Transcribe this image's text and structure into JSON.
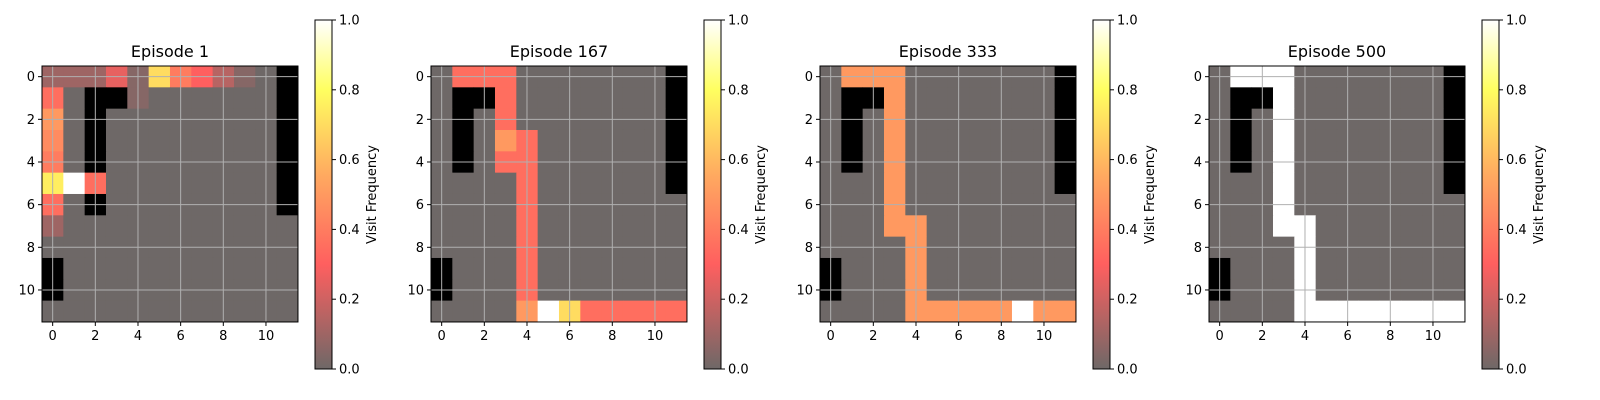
{
  "chart_data": [
    {
      "type": "heatmap",
      "title": "Episode 1",
      "xticks": [
        "0",
        "2",
        "4",
        "6",
        "8",
        "10"
      ],
      "yticks": [
        "0",
        "2",
        "4",
        "6",
        "8",
        "10"
      ],
      "colorbar": {
        "label": "Visit Frequency",
        "ticks": [
          "0.0",
          "0.2",
          "0.4",
          "0.6",
          "0.8",
          "1.0"
        ],
        "range": [
          0,
          1
        ]
      },
      "grid": true,
      "walls": [
        "000000000001",
        "001100000001",
        "001000000001",
        "001000000001",
        "001000000001",
        "000000000001",
        "001000000001",
        "000000000000",
        "000000000000",
        "100000000000",
        "100000000000",
        "000000000000"
      ],
      "values": [
        [
          0.1,
          0.1,
          0.1,
          0.25,
          0.05,
          0.7,
          0.4,
          0.3,
          0.15,
          0.05,
          0.0,
          0.0
        ],
        [
          0.35,
          0.0,
          0.0,
          0.0,
          0.05,
          0.0,
          0.0,
          0.0,
          0.0,
          0.0,
          0.0,
          0.0
        ],
        [
          0.5,
          0.0,
          0.0,
          0.0,
          0.0,
          0.0,
          0.0,
          0.0,
          0.0,
          0.0,
          0.0,
          0.0
        ],
        [
          0.45,
          0.0,
          0.0,
          0.0,
          0.0,
          0.0,
          0.0,
          0.0,
          0.0,
          0.0,
          0.0,
          0.0
        ],
        [
          0.4,
          0.0,
          0.15,
          0.0,
          0.0,
          0.0,
          0.0,
          0.0,
          0.0,
          0.0,
          0.0,
          0.0
        ],
        [
          0.75,
          1.0,
          0.35,
          0.0,
          0.0,
          0.0,
          0.0,
          0.0,
          0.0,
          0.0,
          0.0,
          0.0
        ],
        [
          0.35,
          0.0,
          0.0,
          0.0,
          0.0,
          0.0,
          0.0,
          0.0,
          0.0,
          0.0,
          0.0,
          0.0
        ],
        [
          0.1,
          0.0,
          0.0,
          0.0,
          0.0,
          0.0,
          0.0,
          0.0,
          0.0,
          0.0,
          0.0,
          0.0
        ],
        [
          0.0,
          0.0,
          0.0,
          0.0,
          0.0,
          0.0,
          0.0,
          0.0,
          0.0,
          0.0,
          0.0,
          0.0
        ],
        [
          0.0,
          0.0,
          0.0,
          0.0,
          0.0,
          0.0,
          0.0,
          0.0,
          0.0,
          0.0,
          0.0,
          0.0
        ],
        [
          0.0,
          0.0,
          0.0,
          0.0,
          0.0,
          0.0,
          0.0,
          0.0,
          0.0,
          0.0,
          0.0,
          0.0
        ],
        [
          0.0,
          0.0,
          0.0,
          0.0,
          0.0,
          0.0,
          0.0,
          0.0,
          0.0,
          0.0,
          0.0,
          0.0
        ]
      ]
    },
    {
      "type": "heatmap",
      "title": "Episode 167",
      "xticks": [
        "0",
        "2",
        "4",
        "6",
        "8",
        "10"
      ],
      "yticks": [
        "0",
        "2",
        "4",
        "6",
        "8",
        "10"
      ],
      "colorbar": {
        "label": "Visit Frequency",
        "ticks": [
          "0.0",
          "0.2",
          "0.4",
          "0.6",
          "0.8",
          "1.0"
        ],
        "range": [
          0,
          1
        ]
      },
      "grid": true,
      "walls": [
        "000000000001",
        "011000000001",
        "010000000001",
        "010000000001",
        "010000000001",
        "000000000001",
        "000000000000",
        "000000000000",
        "000000000000",
        "100000000000",
        "100000000000",
        "000000000000"
      ],
      "values": [
        [
          0.0,
          0.35,
          0.35,
          0.35,
          0.0,
          0.0,
          0.0,
          0.0,
          0.0,
          0.0,
          0.0,
          0.0
        ],
        [
          0.0,
          0.0,
          0.0,
          0.35,
          0.0,
          0.0,
          0.0,
          0.0,
          0.0,
          0.0,
          0.0,
          0.0
        ],
        [
          0.0,
          0.0,
          0.0,
          0.35,
          0.0,
          0.0,
          0.0,
          0.0,
          0.0,
          0.0,
          0.0,
          0.0
        ],
        [
          0.0,
          0.0,
          0.0,
          0.5,
          0.35,
          0.0,
          0.0,
          0.0,
          0.0,
          0.0,
          0.0,
          0.0
        ],
        [
          0.0,
          0.0,
          0.0,
          0.35,
          0.35,
          0.0,
          0.0,
          0.0,
          0.0,
          0.0,
          0.0,
          0.0
        ],
        [
          0.0,
          0.0,
          0.0,
          0.0,
          0.35,
          0.0,
          0.0,
          0.0,
          0.0,
          0.0,
          0.0,
          0.0
        ],
        [
          0.0,
          0.0,
          0.0,
          0.0,
          0.35,
          0.0,
          0.0,
          0.0,
          0.0,
          0.0,
          0.0,
          0.0
        ],
        [
          0.0,
          0.0,
          0.0,
          0.0,
          0.35,
          0.0,
          0.0,
          0.0,
          0.0,
          0.0,
          0.0,
          0.0
        ],
        [
          0.0,
          0.0,
          0.0,
          0.0,
          0.35,
          0.0,
          0.0,
          0.0,
          0.0,
          0.0,
          0.0,
          0.0
        ],
        [
          0.0,
          0.0,
          0.0,
          0.0,
          0.35,
          0.0,
          0.0,
          0.0,
          0.0,
          0.0,
          0.0,
          0.0
        ],
        [
          0.0,
          0.0,
          0.0,
          0.0,
          0.35,
          0.0,
          0.0,
          0.0,
          0.0,
          0.0,
          0.0,
          0.0
        ],
        [
          0.0,
          0.0,
          0.0,
          0.0,
          0.5,
          1.0,
          0.7,
          0.35,
          0.35,
          0.35,
          0.35,
          0.35
        ]
      ]
    },
    {
      "type": "heatmap",
      "title": "Episode 333",
      "xticks": [
        "0",
        "2",
        "4",
        "6",
        "8",
        "10"
      ],
      "yticks": [
        "0",
        "2",
        "4",
        "6",
        "8",
        "10"
      ],
      "colorbar": {
        "label": "Visit Frequency",
        "ticks": [
          "0.0",
          "0.2",
          "0.4",
          "0.6",
          "0.8",
          "1.0"
        ],
        "range": [
          0,
          1
        ]
      },
      "grid": true,
      "walls": [
        "000000000001",
        "011000000001",
        "010000000001",
        "010000000001",
        "010000000001",
        "000000000001",
        "000000000000",
        "000000000000",
        "000000000000",
        "100000000000",
        "100000000000",
        "000000000000"
      ],
      "values": [
        [
          0.0,
          0.5,
          0.5,
          0.5,
          0.0,
          0.0,
          0.0,
          0.0,
          0.0,
          0.0,
          0.0,
          0.0
        ],
        [
          0.0,
          0.0,
          0.0,
          0.5,
          0.0,
          0.0,
          0.0,
          0.0,
          0.0,
          0.0,
          0.0,
          0.0
        ],
        [
          0.0,
          0.0,
          0.0,
          0.5,
          0.0,
          0.0,
          0.0,
          0.0,
          0.0,
          0.0,
          0.0,
          0.0
        ],
        [
          0.0,
          0.0,
          0.0,
          0.5,
          0.0,
          0.0,
          0.0,
          0.0,
          0.0,
          0.0,
          0.0,
          0.0
        ],
        [
          0.0,
          0.0,
          0.0,
          0.5,
          0.0,
          0.0,
          0.0,
          0.0,
          0.0,
          0.0,
          0.0,
          0.0
        ],
        [
          0.0,
          0.0,
          0.0,
          0.5,
          0.0,
          0.0,
          0.0,
          0.0,
          0.0,
          0.0,
          0.0,
          0.0
        ],
        [
          0.0,
          0.0,
          0.0,
          0.5,
          0.0,
          0.0,
          0.0,
          0.0,
          0.0,
          0.0,
          0.0,
          0.0
        ],
        [
          0.0,
          0.0,
          0.0,
          0.5,
          0.5,
          0.0,
          0.0,
          0.0,
          0.0,
          0.0,
          0.0,
          0.0
        ],
        [
          0.0,
          0.0,
          0.0,
          0.0,
          0.5,
          0.0,
          0.0,
          0.0,
          0.0,
          0.0,
          0.0,
          0.0
        ],
        [
          0.0,
          0.0,
          0.0,
          0.0,
          0.5,
          0.0,
          0.0,
          0.0,
          0.0,
          0.0,
          0.0,
          0.0
        ],
        [
          0.0,
          0.0,
          0.0,
          0.0,
          0.5,
          0.0,
          0.0,
          0.0,
          0.0,
          0.0,
          0.0,
          0.0
        ],
        [
          0.0,
          0.0,
          0.0,
          0.0,
          0.5,
          0.5,
          0.5,
          0.5,
          0.5,
          1.0,
          0.5,
          0.5
        ]
      ]
    },
    {
      "type": "heatmap",
      "title": "Episode 500",
      "xticks": [
        "0",
        "2",
        "4",
        "6",
        "8",
        "10"
      ],
      "yticks": [
        "0",
        "2",
        "4",
        "6",
        "8",
        "10"
      ],
      "colorbar": {
        "label": "Visit Frequency",
        "ticks": [
          "0.0",
          "0.2",
          "0.4",
          "0.6",
          "0.8",
          "1.0"
        ],
        "range": [
          0,
          1
        ]
      },
      "grid": true,
      "walls": [
        "000000000001",
        "011000000001",
        "010000000001",
        "010000000001",
        "010000000001",
        "000000000001",
        "000000000000",
        "000000000000",
        "000000000000",
        "100000000000",
        "100000000000",
        "000000000000"
      ],
      "values": [
        [
          0.0,
          1.0,
          1.0,
          1.0,
          0.0,
          0.0,
          0.0,
          0.0,
          0.0,
          0.0,
          0.0,
          0.0
        ],
        [
          0.0,
          0.0,
          0.0,
          1.0,
          0.0,
          0.0,
          0.0,
          0.0,
          0.0,
          0.0,
          0.0,
          0.0
        ],
        [
          0.0,
          0.0,
          0.0,
          1.0,
          0.0,
          0.0,
          0.0,
          0.0,
          0.0,
          0.0,
          0.0,
          0.0
        ],
        [
          0.0,
          0.0,
          0.0,
          1.0,
          0.0,
          0.0,
          0.0,
          0.0,
          0.0,
          0.0,
          0.0,
          0.0
        ],
        [
          0.0,
          0.0,
          0.0,
          1.0,
          0.0,
          0.0,
          0.0,
          0.0,
          0.0,
          0.0,
          0.0,
          0.0
        ],
        [
          0.0,
          0.0,
          0.0,
          1.0,
          0.0,
          0.0,
          0.0,
          0.0,
          0.0,
          0.0,
          0.0,
          0.0
        ],
        [
          0.0,
          0.0,
          0.0,
          1.0,
          0.0,
          0.0,
          0.0,
          0.0,
          0.0,
          0.0,
          0.0,
          0.0
        ],
        [
          0.0,
          0.0,
          0.0,
          1.0,
          1.0,
          0.0,
          0.0,
          0.0,
          0.0,
          0.0,
          0.0,
          0.0
        ],
        [
          0.0,
          0.0,
          0.0,
          0.0,
          1.0,
          0.0,
          0.0,
          0.0,
          0.0,
          0.0,
          0.0,
          0.0
        ],
        [
          0.0,
          0.0,
          0.0,
          0.0,
          1.0,
          0.0,
          0.0,
          0.0,
          0.0,
          0.0,
          0.0,
          0.0
        ],
        [
          0.0,
          0.0,
          0.0,
          0.0,
          1.0,
          0.0,
          0.0,
          0.0,
          0.0,
          0.0,
          0.0,
          0.0
        ],
        [
          0.0,
          0.0,
          0.0,
          0.0,
          1.0,
          1.0,
          1.0,
          1.0,
          1.0,
          1.0,
          1.0,
          1.0
        ]
      ]
    }
  ],
  "colors": {
    "cmap_stops": [
      "#6e6867",
      "#ff5f5f",
      "#ffa860",
      "#ffff60",
      "#ffffff"
    ],
    "wall": "#000000",
    "grid": "#b0b0b0"
  }
}
